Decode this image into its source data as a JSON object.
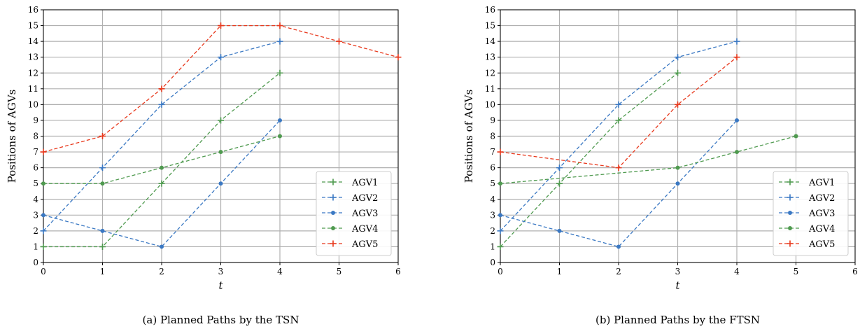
{
  "chart_data": [
    {
      "type": "line",
      "caption": "(a)  Planned Paths by the TSN",
      "xlabel": "t",
      "ylabel": "Positions of AGVs",
      "xlim": [
        0,
        6
      ],
      "ylim": [
        0,
        16
      ],
      "xticks": [
        0,
        1,
        2,
        3,
        4,
        5,
        6
      ],
      "yticks": [
        0,
        1,
        2,
        3,
        4,
        5,
        6,
        7,
        8,
        9,
        10,
        11,
        12,
        13,
        14,
        15,
        16
      ],
      "grid": true,
      "legend": "lower-right",
      "series": [
        {
          "name": "AGV1",
          "color": "#4f9a4f",
          "marker": "plus",
          "x": [
            0,
            1,
            2,
            3,
            4
          ],
          "y": [
            1,
            1,
            5,
            9,
            12
          ]
        },
        {
          "name": "AGV2",
          "color": "#3a78c3",
          "marker": "plus",
          "x": [
            0,
            1,
            2,
            3,
            4
          ],
          "y": [
            2,
            6,
            10,
            13,
            14
          ]
        },
        {
          "name": "AGV3",
          "color": "#3a78c3",
          "marker": "dot",
          "x": [
            0,
            1,
            2,
            3,
            4
          ],
          "y": [
            3,
            2,
            1,
            5,
            9
          ]
        },
        {
          "name": "AGV4",
          "color": "#4f9a4f",
          "marker": "dot",
          "x": [
            0,
            1,
            2,
            3,
            4
          ],
          "y": [
            5,
            5,
            6,
            7,
            8
          ]
        },
        {
          "name": "AGV5",
          "color": "#e8391d",
          "marker": "plus",
          "x": [
            0,
            1,
            2,
            3,
            4,
            5,
            6
          ],
          "y": [
            7,
            8,
            11,
            15,
            15,
            14,
            13
          ]
        }
      ]
    },
    {
      "type": "line",
      "caption": "(b)  Planned Paths by the FTSN",
      "xlabel": "t",
      "ylabel": "Positions of AGVs",
      "xlim": [
        0,
        6
      ],
      "ylim": [
        0,
        16
      ],
      "xticks": [
        0,
        1,
        2,
        3,
        4,
        5,
        6
      ],
      "yticks": [
        0,
        1,
        2,
        3,
        4,
        5,
        6,
        7,
        8,
        9,
        10,
        11,
        12,
        13,
        14,
        15,
        16
      ],
      "grid": true,
      "legend": "lower-right",
      "series": [
        {
          "name": "AGV1",
          "color": "#4f9a4f",
          "marker": "plus",
          "x": [
            0,
            1,
            2,
            3
          ],
          "y": [
            1,
            5,
            9,
            12
          ]
        },
        {
          "name": "AGV2",
          "color": "#3a78c3",
          "marker": "plus",
          "x": [
            0,
            1,
            2,
            3,
            4
          ],
          "y": [
            2,
            6,
            10,
            13,
            14
          ]
        },
        {
          "name": "AGV3",
          "color": "#3a78c3",
          "marker": "dot",
          "x": [
            0,
            1,
            2,
            3,
            4
          ],
          "y": [
            3,
            2,
            1,
            5,
            9
          ]
        },
        {
          "name": "AGV4",
          "color": "#4f9a4f",
          "marker": "dot",
          "x": [
            0,
            3,
            4,
            5
          ],
          "y": [
            5,
            6,
            7,
            8
          ]
        },
        {
          "name": "AGV5",
          "color": "#e8391d",
          "marker": "plus",
          "x": [
            0,
            2,
            3,
            4
          ],
          "y": [
            7,
            6,
            10,
            13
          ]
        }
      ]
    }
  ]
}
